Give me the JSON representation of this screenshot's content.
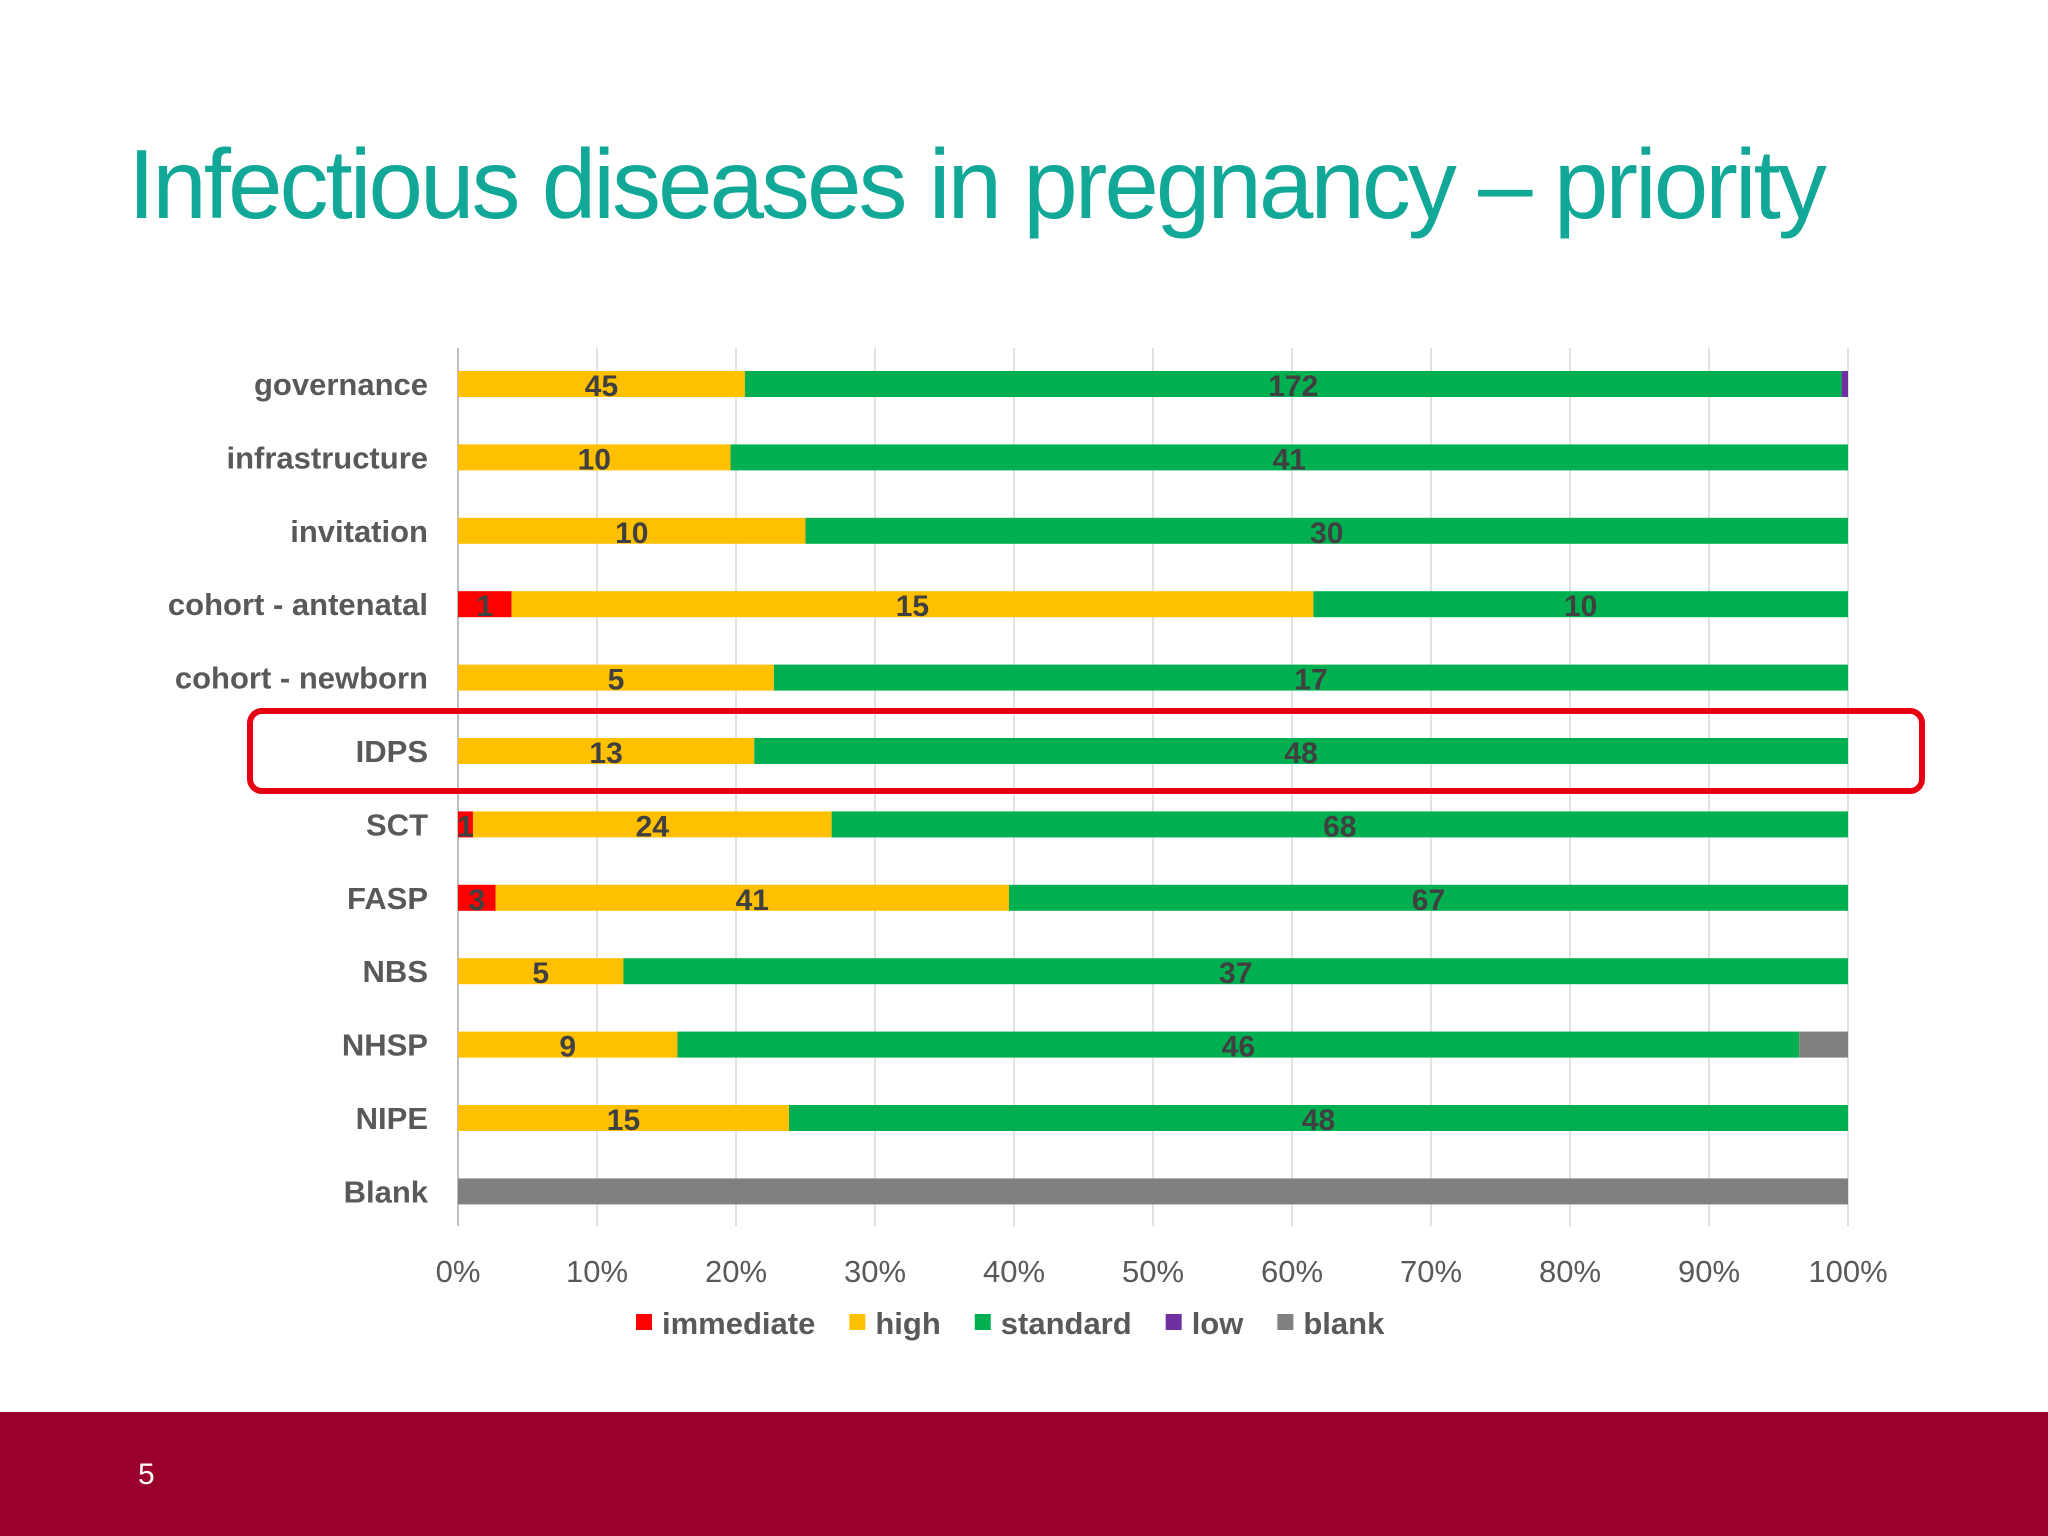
{
  "slide": {
    "title": "Infectious diseases in pregnancy – priority",
    "page_number": "5",
    "footer_color": "#9b002c",
    "title_color": "#12a898"
  },
  "chart_data": {
    "type": "bar",
    "orientation": "horizontal",
    "stacking": "percent",
    "categories": [
      "governance",
      "infrastructure",
      "invitation",
      "cohort - antenatal",
      "cohort - newborn",
      "IDPS",
      "SCT",
      "FASP",
      "NBS",
      "NHSP",
      "NIPE",
      "Blank"
    ],
    "series": [
      {
        "name": "immediate",
        "color": "#ff0000",
        "values": [
          0,
          0,
          0,
          1,
          0,
          0,
          1,
          3,
          0,
          0,
          0,
          0
        ]
      },
      {
        "name": "high",
        "color": "#ffc000",
        "values": [
          45,
          10,
          10,
          15,
          5,
          13,
          24,
          41,
          5,
          9,
          15,
          0
        ]
      },
      {
        "name": "standard",
        "color": "#00b050",
        "values": [
          172,
          41,
          30,
          10,
          17,
          48,
          68,
          67,
          37,
          46,
          48,
          0
        ]
      },
      {
        "name": "low",
        "color": "#7030a0",
        "values": [
          1,
          0,
          0,
          0,
          0,
          0,
          0,
          0,
          0,
          0,
          0,
          0
        ]
      },
      {
        "name": "blank",
        "color": "#808080",
        "values": [
          0,
          0,
          0,
          0,
          0,
          0,
          0,
          0,
          0,
          2,
          0,
          1
        ]
      }
    ],
    "data_labels": [
      [
        "",
        "45",
        "172",
        "",
        ""
      ],
      [
        "",
        "10",
        "41",
        "",
        ""
      ],
      [
        "",
        "10",
        "30",
        "",
        ""
      ],
      [
        "1",
        "15",
        "10",
        "",
        ""
      ],
      [
        "",
        "5",
        "17",
        "",
        ""
      ],
      [
        "",
        "13",
        "48",
        "",
        ""
      ],
      [
        "1",
        "24",
        "68",
        "",
        ""
      ],
      [
        "3",
        "41",
        "67",
        "",
        ""
      ],
      [
        "",
        "5",
        "37",
        "",
        ""
      ],
      [
        "",
        "9",
        "46",
        "",
        ""
      ],
      [
        "",
        "15",
        "48",
        "",
        ""
      ],
      [
        "",
        "",
        "",
        "",
        ""
      ]
    ],
    "x_ticks": [
      "0%",
      "10%",
      "20%",
      "30%",
      "40%",
      "50%",
      "60%",
      "70%",
      "80%",
      "90%",
      "100%"
    ],
    "xlim": [
      0,
      100
    ],
    "grid": "vertical",
    "legend_position": "bottom",
    "highlighted_category": "IDPS",
    "highlight_color": "#e60012"
  }
}
